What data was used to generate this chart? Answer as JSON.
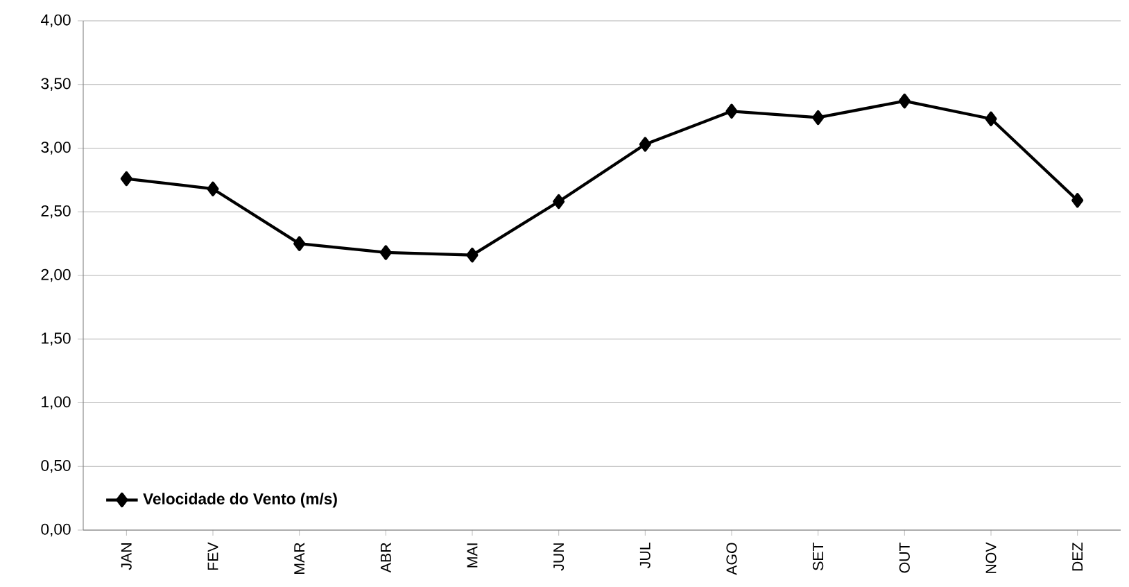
{
  "chart_data": {
    "type": "line",
    "categories": [
      "JAN",
      "FEV",
      "MAR",
      "ABR",
      "MAI",
      "JUN",
      "JUL",
      "AGO",
      "SET",
      "OUT",
      "NOV",
      "DEZ"
    ],
    "series": [
      {
        "name": "Velocidade do Vento (m/s)",
        "color": "#000000",
        "values": [
          2.76,
          2.68,
          2.25,
          2.18,
          2.16,
          2.58,
          3.03,
          3.29,
          3.24,
          3.37,
          3.23,
          2.59
        ]
      }
    ],
    "ylim": [
      0,
      4
    ],
    "yticks": [
      {
        "value": 0,
        "label": "0,00"
      },
      {
        "value": 0.5,
        "label": "0,50"
      },
      {
        "value": 1,
        "label": "1,00"
      },
      {
        "value": 1.5,
        "label": "1,50"
      },
      {
        "value": 2,
        "label": "2,00"
      },
      {
        "value": 2.5,
        "label": "2,50"
      },
      {
        "value": 3,
        "label": "3,00"
      },
      {
        "value": 3.5,
        "label": "3,50"
      },
      {
        "value": 4,
        "label": "4,00"
      }
    ],
    "grid": "y",
    "legend": "bottom left",
    "marker": "diamond",
    "line_style": "solid"
  }
}
